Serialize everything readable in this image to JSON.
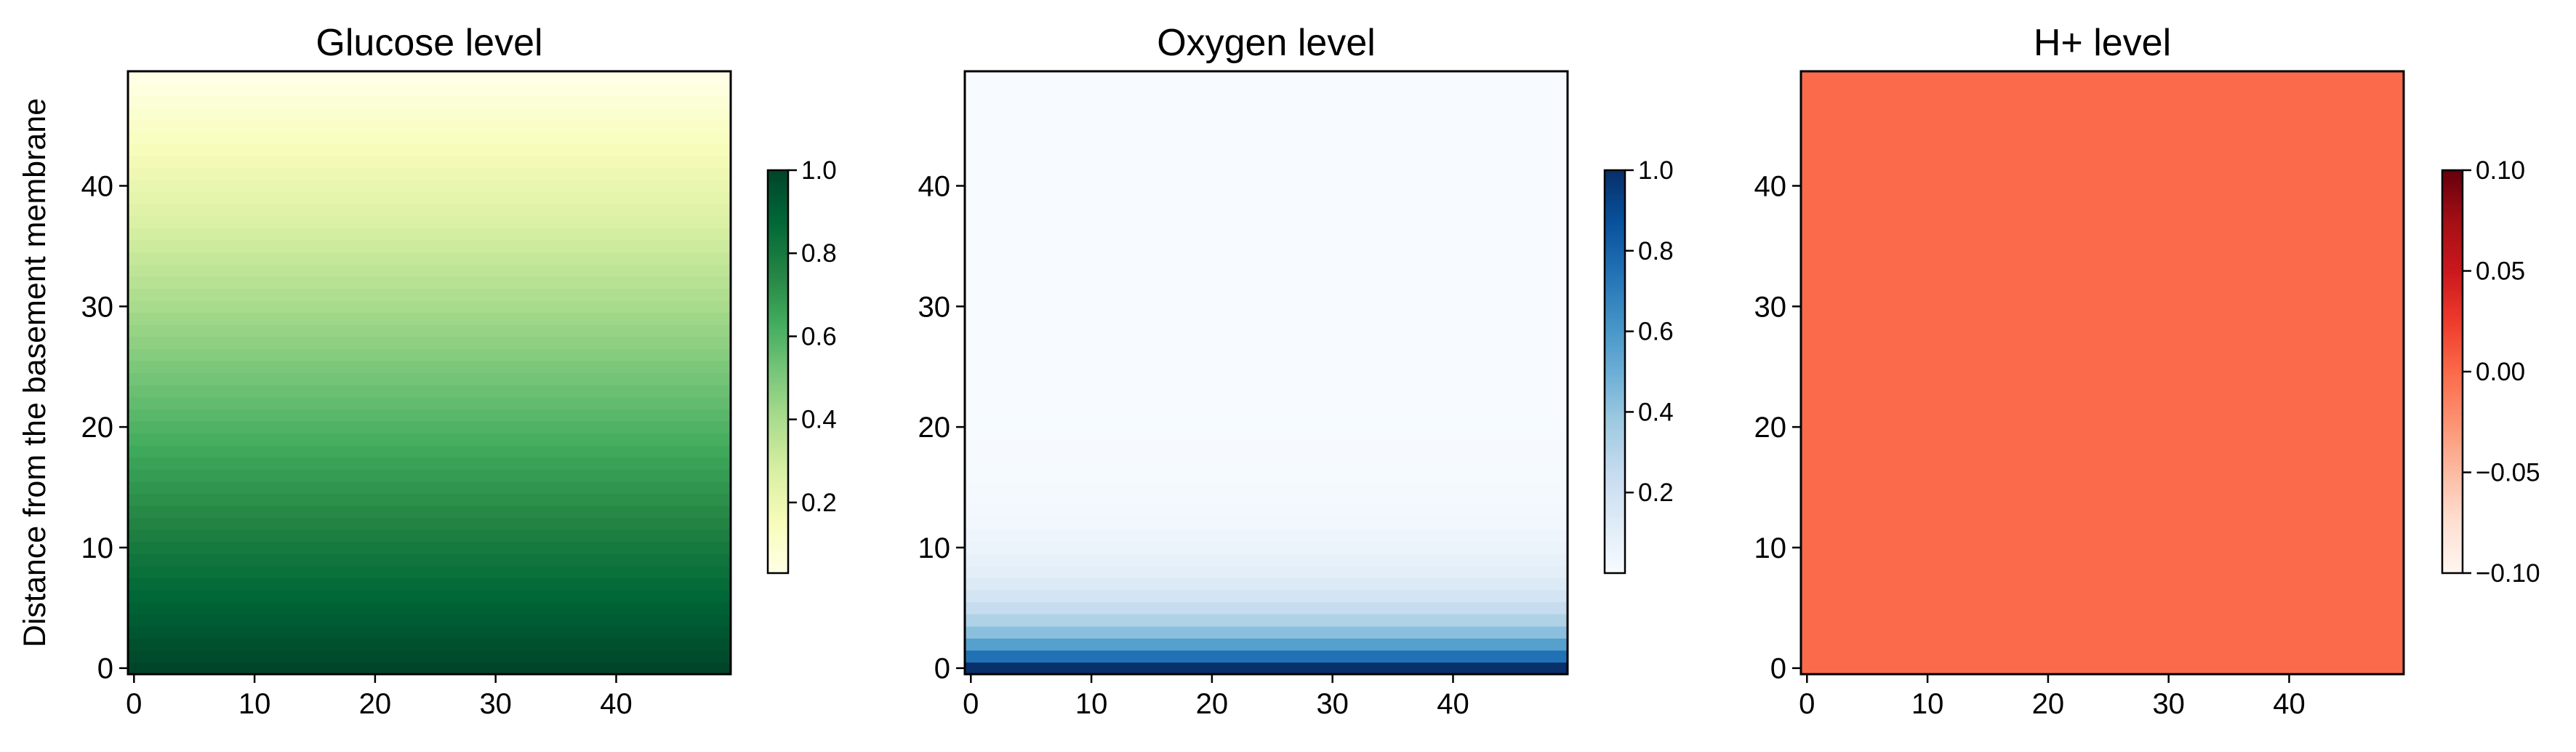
{
  "chart_data": [
    {
      "type": "heatmap",
      "title": "Glucose level",
      "ylabel": "Distance from the basement membrane",
      "xlabel": "",
      "grid_size": [
        50,
        50
      ],
      "xlim": [
        -0.5,
        49.5
      ],
      "ylim": [
        -0.5,
        49.5
      ],
      "x_ticks": [
        0,
        10,
        20,
        30,
        40
      ],
      "y_ticks": [
        0,
        10,
        20,
        30,
        40
      ],
      "colormap": "YlGn",
      "colors": [
        "#ffffe5",
        "#f7fcb9",
        "#d9f0a3",
        "#addd8e",
        "#78c679",
        "#41ab5d",
        "#238443",
        "#006837",
        "#004529"
      ],
      "colorbar_ticks": [
        0.2,
        0.4,
        0.6,
        0.8,
        1.0
      ],
      "colorbar_tick_labels": [
        "0.2",
        "0.4",
        "0.6",
        "0.8",
        "1.0"
      ],
      "clim": [
        0.03,
        1.0
      ],
      "profile": {
        "kind": "linear",
        "at_row_0": 1.0,
        "at_row_49": 0.03
      },
      "varies_along": "y"
    },
    {
      "type": "heatmap",
      "title": "Oxygen level",
      "ylabel": "",
      "xlabel": "",
      "grid_size": [
        50,
        50
      ],
      "xlim": [
        -0.5,
        49.5
      ],
      "ylim": [
        -0.5,
        49.5
      ],
      "x_ticks": [
        0,
        10,
        20,
        30,
        40
      ],
      "y_ticks": [
        0,
        10,
        20,
        30,
        40
      ],
      "colormap": "Blues",
      "colors": [
        "#f7fbff",
        "#deebf7",
        "#c6dbef",
        "#9ecae1",
        "#6baed6",
        "#4292c6",
        "#2171b5",
        "#08519c",
        "#08306b"
      ],
      "colorbar_ticks": [
        0.2,
        0.4,
        0.6,
        0.8,
        1.0
      ],
      "colorbar_tick_labels": [
        "0.2",
        "0.4",
        "0.6",
        "0.8",
        "1.0"
      ],
      "clim": [
        0.0,
        1.0
      ],
      "profile": {
        "kind": "exponential",
        "at_row_0": 1.0,
        "decay_length_rows": 3.5
      },
      "varies_along": "y"
    },
    {
      "type": "heatmap",
      "title": "H+ level",
      "ylabel": "",
      "xlabel": "",
      "grid_size": [
        50,
        50
      ],
      "xlim": [
        -0.5,
        49.5
      ],
      "ylim": [
        -0.5,
        49.5
      ],
      "x_ticks": [
        0,
        10,
        20,
        30,
        40
      ],
      "y_ticks": [
        0,
        10,
        20,
        30,
        40
      ],
      "colormap": "Reds",
      "colors": [
        "#fff5f0",
        "#fee0d2",
        "#fcbba1",
        "#fc9272",
        "#fb6a4a",
        "#ef3b2c",
        "#cb181d",
        "#a50f15",
        "#67000d"
      ],
      "colorbar_ticks": [
        -0.1,
        -0.05,
        0.0,
        0.05,
        0.1
      ],
      "colorbar_tick_labels": [
        "−0.10",
        "−0.05",
        "0.00",
        "0.05",
        "0.10"
      ],
      "clim": [
        -0.1,
        0.1
      ],
      "profile": {
        "kind": "constant",
        "value": 0.0
      },
      "varies_along": "y"
    }
  ]
}
